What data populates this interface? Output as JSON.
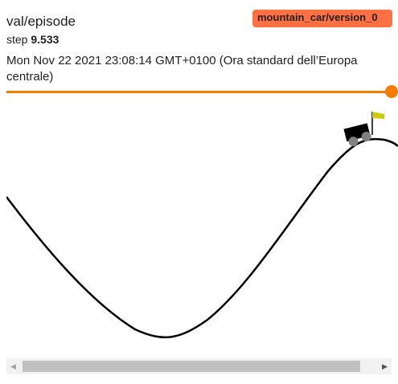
{
  "card": {
    "title": "val/episode",
    "run_badge": "mountain_car/version_0",
    "step_label": "step",
    "step_value": "9.533",
    "timestamp": "Mon Nov 22 2021 23:08:14 GMT+0100 (Ora standard dell’Europa centrale)",
    "step_slider": {
      "position": 1.0
    }
  },
  "colors": {
    "badge": "#ff7043",
    "slider": "#f57c00",
    "scroll_track": "#f1f1f1",
    "scroll_thumb": "#c1c1c1"
  },
  "icons": {
    "scroll_left": "triangle-left",
    "scroll_right": "triangle-right"
  },
  "scrollbar": {
    "left_glyph": "◀",
    "right_glyph": "▶"
  }
}
